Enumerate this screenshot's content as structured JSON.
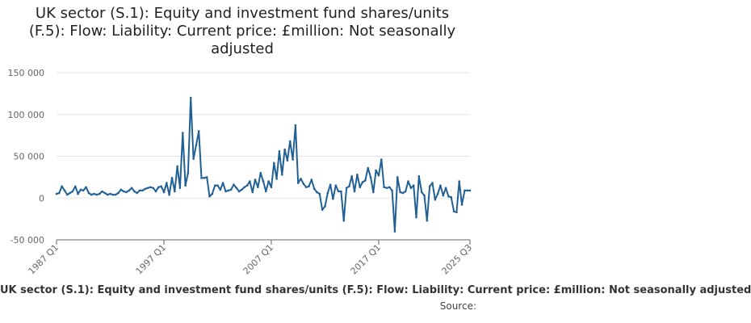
{
  "title_lines": [
    "UK sector (S.1): Equity and investment fund shares/units",
    "(F.5): Flow: Liability: Current price: £million: Not seasonally",
    "adjusted"
  ],
  "source_label": "Source:",
  "chart_data": {
    "type": "line",
    "title": "UK sector (S.1): Equity and investment fund shares/units (F.5): Flow: Liability: Current price: £million: Not seasonally adjusted",
    "ylim": [
      -50000,
      150000
    ],
    "y_ticks": [
      -50000,
      0,
      50000,
      100000,
      150000
    ],
    "y_tick_labels": [
      "-50 000",
      "0",
      "50 000",
      "100 000",
      "150 000"
    ],
    "x_tick_labels": [
      "1987 Q1",
      "1997 Q1",
      "2007 Q1",
      "2017 Q1",
      "2025 Q3"
    ],
    "x_tick_index": [
      0,
      40,
      80,
      120,
      154
    ],
    "grid": true,
    "colors": {
      "line": "#206095",
      "grid": "#e6e6e6",
      "axis": "#666666"
    },
    "series": [
      {
        "name": "UK sector (S.1): Equity and investment fund shares/units (F.5): Flow: Liability: Current price: £million: Not seasonally adjusted",
        "x": [
          "1987 Q1",
          "1987 Q2",
          "1987 Q3",
          "1987 Q4",
          "1988 Q1",
          "1988 Q2",
          "1988 Q3",
          "1988 Q4",
          "1989 Q1",
          "1989 Q2",
          "1989 Q3",
          "1989 Q4",
          "1990 Q1",
          "1990 Q2",
          "1990 Q3",
          "1990 Q4",
          "1991 Q1",
          "1991 Q2",
          "1991 Q3",
          "1991 Q4",
          "1992 Q1",
          "1992 Q2",
          "1992 Q3",
          "1992 Q4",
          "1993 Q1",
          "1993 Q2",
          "1993 Q3",
          "1993 Q4",
          "1994 Q1",
          "1994 Q2",
          "1994 Q3",
          "1994 Q4",
          "1995 Q1",
          "1995 Q2",
          "1995 Q3",
          "1995 Q4",
          "1996 Q1",
          "1996 Q2",
          "1996 Q3",
          "1996 Q4",
          "1997 Q1",
          "1997 Q2",
          "1997 Q3",
          "1997 Q4",
          "1998 Q1",
          "1998 Q2",
          "1998 Q3",
          "1998 Q4",
          "1999 Q1",
          "1999 Q2",
          "1999 Q3",
          "1999 Q4",
          "2000 Q1",
          "2000 Q2",
          "2000 Q3",
          "2000 Q4",
          "2001 Q1",
          "2001 Q2",
          "2001 Q3",
          "2001 Q4",
          "2002 Q1",
          "2002 Q2",
          "2002 Q3",
          "2002 Q4",
          "2003 Q1",
          "2003 Q2",
          "2003 Q3",
          "2003 Q4",
          "2004 Q1",
          "2004 Q2",
          "2004 Q3",
          "2004 Q4",
          "2005 Q1",
          "2005 Q2",
          "2005 Q3",
          "2005 Q4",
          "2006 Q1",
          "2006 Q2",
          "2006 Q3",
          "2006 Q4",
          "2007 Q1",
          "2007 Q2",
          "2007 Q3",
          "2007 Q4",
          "2008 Q1",
          "2008 Q2",
          "2008 Q3",
          "2008 Q4",
          "2009 Q1",
          "2009 Q2",
          "2009 Q3",
          "2009 Q4",
          "2010 Q1",
          "2010 Q2",
          "2010 Q3",
          "2010 Q4",
          "2011 Q1",
          "2011 Q2",
          "2011 Q3",
          "2011 Q4",
          "2012 Q1",
          "2012 Q2",
          "2012 Q3",
          "2012 Q4",
          "2013 Q1",
          "2013 Q2",
          "2013 Q3",
          "2013 Q4",
          "2014 Q1",
          "2014 Q2",
          "2014 Q3",
          "2014 Q4",
          "2015 Q1",
          "2015 Q2",
          "2015 Q3",
          "2015 Q4",
          "2016 Q1",
          "2016 Q2",
          "2016 Q3",
          "2016 Q4",
          "2017 Q1",
          "2017 Q2",
          "2017 Q3",
          "2017 Q4",
          "2018 Q1",
          "2018 Q2",
          "2018 Q3",
          "2018 Q4",
          "2019 Q1",
          "2019 Q2",
          "2019 Q3",
          "2019 Q4",
          "2020 Q1",
          "2020 Q2",
          "2020 Q3",
          "2020 Q4",
          "2021 Q1",
          "2021 Q2",
          "2021 Q3",
          "2021 Q4",
          "2022 Q1",
          "2022 Q2",
          "2022 Q3",
          "2022 Q4",
          "2023 Q1",
          "2023 Q2",
          "2023 Q3",
          "2023 Q4",
          "2024 Q1",
          "2024 Q2",
          "2024 Q3",
          "2024 Q4",
          "2025 Q1",
          "2025 Q2",
          "2025 Q3"
        ],
        "values": [
          5000,
          6000,
          14000,
          9000,
          4000,
          6000,
          8000,
          14000,
          5000,
          10000,
          9000,
          13000,
          6000,
          4000,
          5000,
          4000,
          5000,
          8000,
          6000,
          4000,
          5000,
          4000,
          4000,
          6000,
          10000,
          8000,
          7000,
          9000,
          12000,
          8000,
          6000,
          9000,
          9000,
          11000,
          12000,
          13000,
          12000,
          8000,
          13000,
          14000,
          7000,
          18000,
          4000,
          24000,
          8000,
          38000,
          12000,
          78000,
          15000,
          30000,
          120000,
          47000,
          63000,
          80000,
          24000,
          24000,
          25000,
          2000,
          5000,
          15000,
          15000,
          10000,
          18000,
          8000,
          9000,
          10000,
          16000,
          12000,
          8000,
          10000,
          13000,
          15000,
          20000,
          7000,
          22000,
          13000,
          30000,
          20000,
          8000,
          20000,
          13000,
          42000,
          23000,
          56000,
          28000,
          58000,
          45000,
          68000,
          46000,
          87000,
          18000,
          23000,
          17000,
          13000,
          14000,
          22000,
          11000,
          7000,
          5000,
          -14000,
          -10000,
          6000,
          16000,
          -1000,
          15000,
          8000,
          8000,
          -27000,
          12000,
          14000,
          26000,
          8000,
          28000,
          13000,
          19000,
          21000,
          36000,
          25000,
          7000,
          33000,
          27000,
          46000,
          13000,
          12000,
          13000,
          9000,
          -40000,
          25000,
          7000,
          6000,
          8000,
          20000,
          12000,
          15000,
          -23000,
          26000,
          7000,
          3000,
          -27000,
          14000,
          18000,
          -2000,
          5000,
          15000,
          3000,
          12000,
          2000,
          1000,
          -16000,
          -17000,
          20000,
          -8000,
          9000,
          9000,
          9000
        ]
      }
    ]
  }
}
